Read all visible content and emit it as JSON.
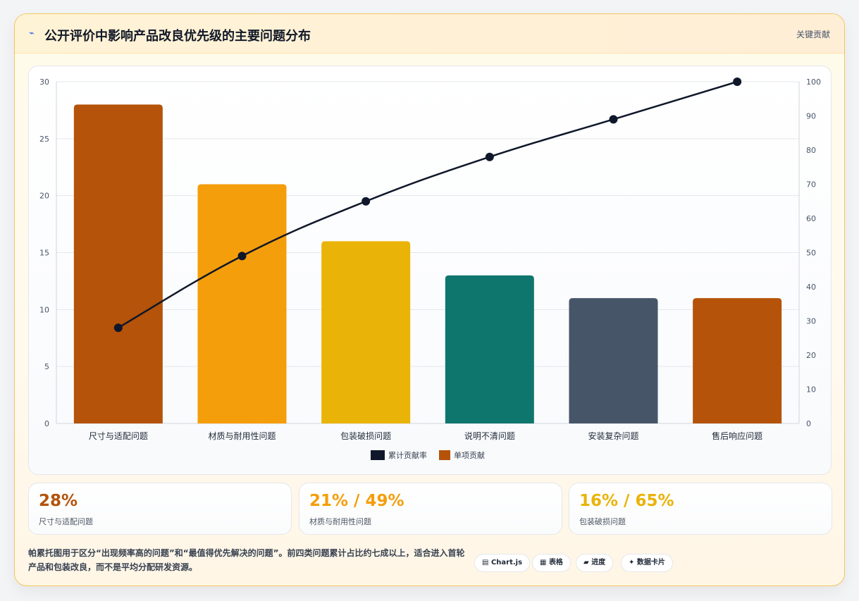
{
  "header": {
    "title": "公开评价中影响产品改良优先级的主要问题分布",
    "right_label": "关键贡献",
    "icon": "pulse-icon"
  },
  "chart_data": {
    "type": "bar",
    "categories": [
      "尺寸与适配问题",
      "材质与耐用性问题",
      "包装破损问题",
      "说明不清问题",
      "安装复杂问题",
      "售后响应问题"
    ],
    "series": [
      {
        "name": "单项贡献",
        "type": "bar",
        "axis": "left",
        "values": [
          28,
          21,
          16,
          13,
          11,
          11
        ],
        "colors": [
          "#b45309",
          "#f59e0b",
          "#eab308",
          "#0f766e",
          "#475569",
          "#b45309"
        ]
      },
      {
        "name": "累计贡献率",
        "type": "line",
        "axis": "right",
        "values": [
          28,
          49,
          65,
          78,
          89,
          100
        ],
        "color": "#0f172a"
      }
    ],
    "y_left": {
      "min": 0,
      "max": 30,
      "ticks": [
        "0",
        "5",
        "10",
        "15",
        "20",
        "25",
        "30"
      ]
    },
    "y_right": {
      "min": 0,
      "max": 100,
      "ticks": [
        "0",
        "10",
        "20",
        "30",
        "40",
        "50",
        "60",
        "70",
        "80",
        "90",
        "100"
      ]
    },
    "legend": {
      "placement": "bottom",
      "items": [
        "累计贡献率",
        "单项贡献"
      ]
    },
    "grid": true
  },
  "kpis": [
    {
      "value": "28%",
      "label": "尺寸与适配问题",
      "color": "#b45309"
    },
    {
      "value": "21% / 49%",
      "label": "材质与耐用性问题",
      "color": "#f59e0b"
    },
    {
      "value": "16% / 65%",
      "label": "包装破损问题",
      "color": "#eab308"
    }
  ],
  "note": "帕累托图用于区分“出现频率高的问题”和“最值得优先解决的问题”。前四类问题累计占比约七成以上，适合进入首轮产品和包装改良，而不是平均分配研发资源。",
  "tags": [
    {
      "icon": "chart-icon",
      "glyph": "▤",
      "label": "Chart.js"
    },
    {
      "icon": "table-icon",
      "glyph": "▦",
      "label": "表格"
    },
    {
      "icon": "progress-icon",
      "glyph": "▰",
      "label": "进度"
    },
    {
      "icon": "card-icon",
      "glyph": "✦",
      "label": "数据卡片"
    }
  ]
}
